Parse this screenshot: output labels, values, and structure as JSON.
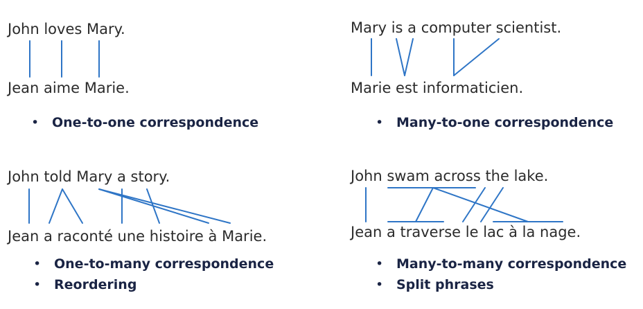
{
  "panels": {
    "one_to_one": {
      "source": "John loves Mary.",
      "target": "Jean aime Marie.",
      "bullets": [
        "One-to-one correspondence"
      ]
    },
    "many_to_one": {
      "source": "Mary is a computer scientist.",
      "target": "Marie est informaticien.",
      "bullets": [
        "Many-to-one correspondence"
      ]
    },
    "one_to_many": {
      "source": "John told Mary a story.",
      "target": "Jean a raconté une histoire à Marie.",
      "bullets": [
        "One-to-many correspondence",
        "Reordering"
      ]
    },
    "many_to_many": {
      "source": "John swam across the lake.",
      "target": "Jean a traverse le lac à la nage.",
      "bullets": [
        "Many-to-many correspondence",
        "Split phrases"
      ]
    }
  },
  "bullet_glyph": "•",
  "colors": {
    "alignment_line": "#2e75c6",
    "sentence_text": "#2b2b2b",
    "bullet_text": "#1a2444"
  }
}
